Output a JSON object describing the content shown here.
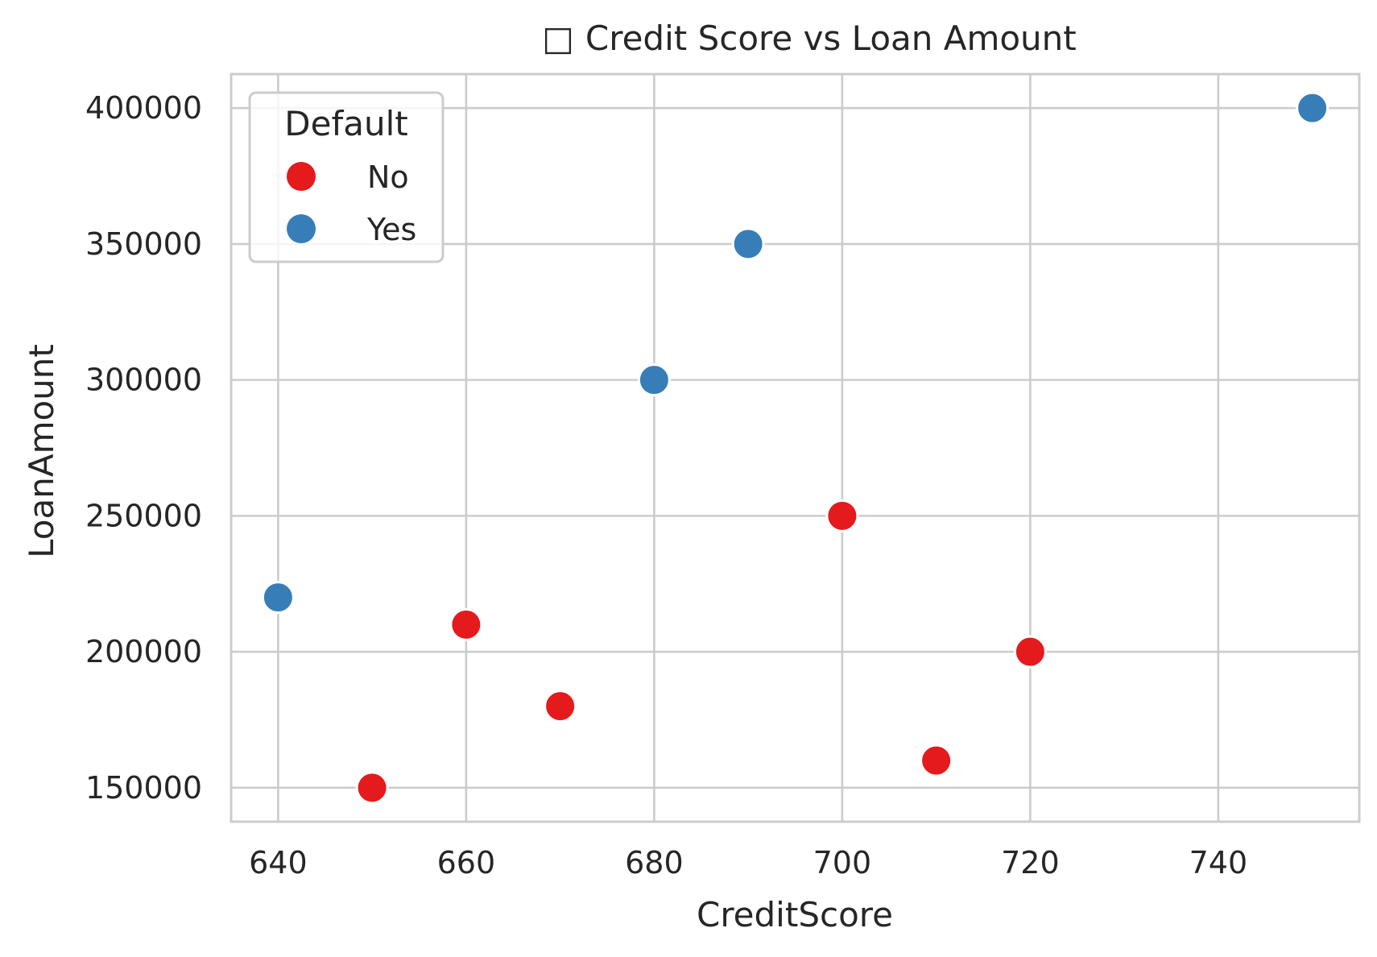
{
  "chart_data": {
    "type": "scatter",
    "title": "Credit Score vs Loan Amount",
    "title_icon": "□",
    "xlabel": "CreditScore",
    "ylabel": "LoanAmount",
    "xlim": [
      635,
      755
    ],
    "ylim": [
      137500,
      412500
    ],
    "xticks": [
      640,
      660,
      680,
      700,
      720,
      740
    ],
    "yticks": [
      150000,
      200000,
      250000,
      300000,
      350000,
      400000
    ],
    "grid": true,
    "legend": {
      "title": "Default",
      "placement": "top-left",
      "entries": [
        {
          "label": "No",
          "color": "#e41a1c"
        },
        {
          "label": "Yes",
          "color": "#377eb8"
        }
      ]
    },
    "series": [
      {
        "name": "No",
        "color": "#e41a1c",
        "points": [
          {
            "x": 650,
            "y": 150000
          },
          {
            "x": 660,
            "y": 210000
          },
          {
            "x": 670,
            "y": 180000
          },
          {
            "x": 700,
            "y": 250000
          },
          {
            "x": 710,
            "y": 160000
          },
          {
            "x": 720,
            "y": 200000
          }
        ]
      },
      {
        "name": "Yes",
        "color": "#377eb8",
        "points": [
          {
            "x": 640,
            "y": 220000
          },
          {
            "x": 680,
            "y": 300000
          },
          {
            "x": 690,
            "y": 350000
          },
          {
            "x": 750,
            "y": 400000
          }
        ]
      }
    ]
  }
}
